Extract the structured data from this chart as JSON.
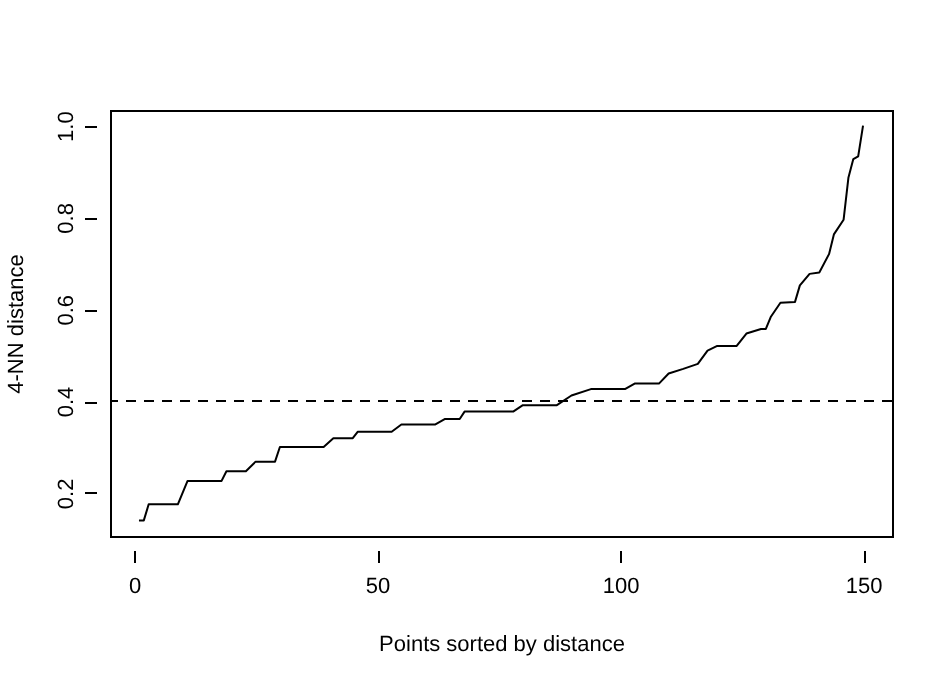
{
  "chart_data": {
    "type": "line",
    "xlabel": "Points sorted by distance",
    "ylabel": "4-NN distance",
    "xlim": [
      -4.96,
      155.96
    ],
    "ylim": [
      0.106,
      1.034
    ],
    "xticks": [
      0,
      50,
      100,
      150
    ],
    "yticks": [
      0.2,
      0.4,
      0.6,
      0.8,
      {
        "value": 1,
        "label": "1.0"
      }
    ],
    "series": [
      {
        "color": "#000000",
        "x": [
          1,
          2,
          3,
          9,
          11,
          18,
          19,
          23,
          25,
          29,
          30,
          39,
          41,
          45,
          46,
          53,
          55,
          62,
          64,
          67,
          68,
          78,
          80,
          87,
          90,
          94,
          101,
          103,
          108,
          110,
          113,
          116,
          118,
          120,
          124,
          126,
          129,
          130,
          131,
          133,
          136,
          137,
          139,
          141,
          143,
          144,
          146,
          147,
          148,
          149,
          150
        ],
        "values": [
          0.14,
          0.14,
          0.175,
          0.175,
          0.226,
          0.226,
          0.247,
          0.247,
          0.268,
          0.268,
          0.3,
          0.3,
          0.319,
          0.319,
          0.333,
          0.333,
          0.349,
          0.349,
          0.361,
          0.361,
          0.377,
          0.377,
          0.391,
          0.391,
          0.412,
          0.426,
          0.426,
          0.438,
          0.438,
          0.46,
          0.47,
          0.481,
          0.51,
          0.52,
          0.52,
          0.547,
          0.557,
          0.557,
          0.583,
          0.614,
          0.616,
          0.652,
          0.677,
          0.68,
          0.72,
          0.763,
          0.795,
          0.887,
          0.927,
          0.933,
          1.0
        ]
      }
    ],
    "ref_lines": [
      {
        "axis": "y",
        "value": 0.4,
        "line_style": "dashed",
        "color": "#000000"
      }
    ],
    "grid": false,
    "line_style": "solid",
    "marker": "none"
  }
}
